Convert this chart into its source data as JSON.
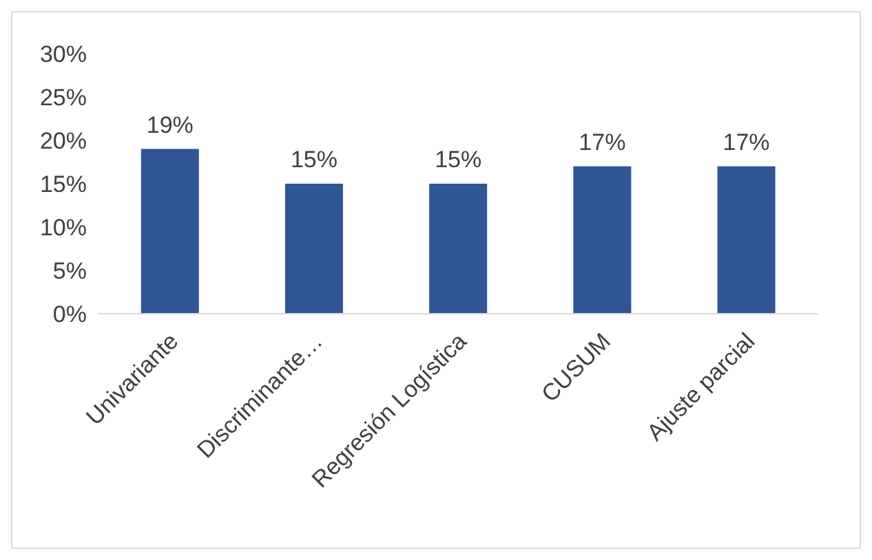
{
  "chart_data": {
    "type": "bar",
    "categories": [
      "Univariante",
      "Discriminante…",
      "Regresión Logística",
      "CUSUM",
      "Ajuste parcial"
    ],
    "values": [
      19,
      15,
      15,
      17,
      17
    ],
    "color": "#2f5597",
    "value_labels": [
      "19%",
      "15%",
      "15%",
      "17%",
      "17%"
    ],
    "ylim": [
      0,
      30
    ],
    "yticks": [
      {
        "value": 0,
        "label": "0%"
      },
      {
        "value": 5,
        "label": "5%"
      },
      {
        "value": 10,
        "label": "10%"
      },
      {
        "value": 15,
        "label": "15%"
      },
      {
        "value": 20,
        "label": "20%"
      },
      {
        "value": 25,
        "label": "25%"
      },
      {
        "value": 30,
        "label": "30%"
      }
    ],
    "grid": false,
    "legend": false
  }
}
